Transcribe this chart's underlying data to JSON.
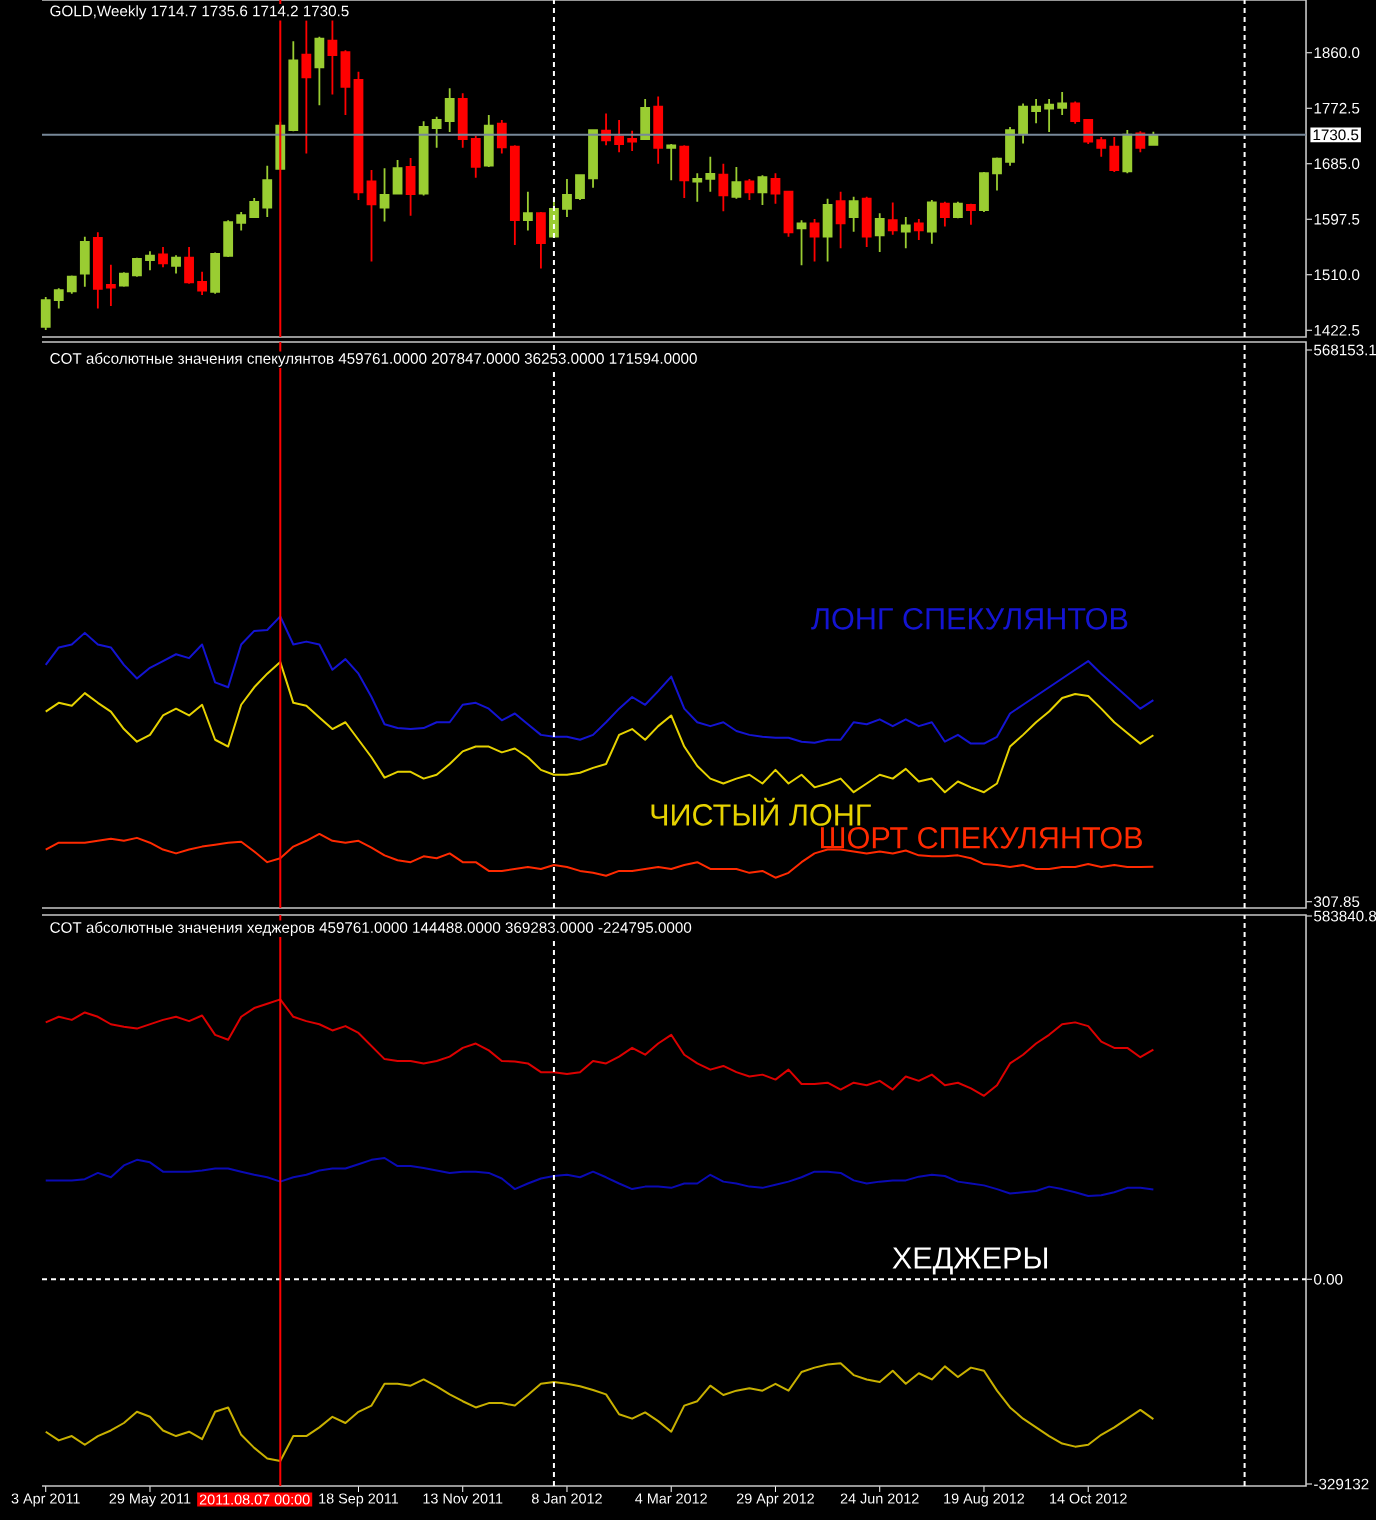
{
  "chart_data": [
    {
      "type": "candlestick",
      "title": "GOLD,Weekly 1714.7 1735.6 1714.2 1730.5",
      "x": [
        "2011-04-03",
        "2011-04-10",
        "2011-04-17",
        "2011-04-24",
        "2011-05-01",
        "2011-05-08",
        "2011-05-15",
        "2011-05-22",
        "2011-05-29",
        "2011-06-05",
        "2011-06-12",
        "2011-06-19",
        "2011-06-26",
        "2011-07-03",
        "2011-07-10",
        "2011-07-17",
        "2011-07-24",
        "2011-07-31",
        "2011-08-07",
        "2011-08-14",
        "2011-08-21",
        "2011-08-28",
        "2011-09-04",
        "2011-09-11",
        "2011-09-18",
        "2011-09-25",
        "2011-10-02",
        "2011-10-09",
        "2011-10-16",
        "2011-10-23",
        "2011-10-30",
        "2011-11-06",
        "2011-11-13",
        "2011-11-20",
        "2011-11-27",
        "2011-12-04",
        "2011-12-11",
        "2011-12-18",
        "2011-12-25",
        "2012-01-01",
        "2012-01-08",
        "2012-01-15",
        "2012-01-22",
        "2012-01-29",
        "2012-02-05",
        "2012-02-12",
        "2012-02-19",
        "2012-02-26",
        "2012-03-04",
        "2012-03-11",
        "2012-03-18",
        "2012-03-25",
        "2012-04-01",
        "2012-04-08",
        "2012-04-15",
        "2012-04-22",
        "2012-04-29",
        "2012-05-06",
        "2012-05-13",
        "2012-05-20",
        "2012-05-27",
        "2012-06-03",
        "2012-06-10",
        "2012-06-17",
        "2012-06-24",
        "2012-07-01",
        "2012-07-08",
        "2012-07-15",
        "2012-07-22",
        "2012-07-29",
        "2012-08-05",
        "2012-08-12",
        "2012-08-19",
        "2012-08-26",
        "2012-09-02",
        "2012-09-09",
        "2012-09-16",
        "2012-09-23",
        "2012-09-30",
        "2012-10-07",
        "2012-10-14",
        "2012-10-21",
        "2012-10-28",
        "2012-11-04",
        "2012-11-11",
        "2012-11-18"
      ],
      "ohlc": [
        [
          1428,
          1475,
          1423,
          1470
        ],
        [
          1470,
          1489,
          1457,
          1486
        ],
        [
          1484,
          1509,
          1480,
          1507
        ],
        [
          1512,
          1570,
          1491,
          1562
        ],
        [
          1568,
          1577,
          1457,
          1488
        ],
        [
          1494,
          1526,
          1461,
          1490
        ],
        [
          1493,
          1514,
          1491,
          1512
        ],
        [
          1509,
          1537,
          1507,
          1535
        ],
        [
          1533,
          1547,
          1517,
          1540
        ],
        [
          1542,
          1554,
          1522,
          1528
        ],
        [
          1524,
          1541,
          1512,
          1537
        ],
        [
          1537,
          1554,
          1496,
          1498
        ],
        [
          1499,
          1515,
          1478,
          1485
        ],
        [
          1483,
          1545,
          1480,
          1543
        ],
        [
          1540,
          1596,
          1538,
          1593
        ],
        [
          1592,
          1609,
          1580,
          1604
        ],
        [
          1601,
          1631,
          1600,
          1625
        ],
        [
          1616,
          1682,
          1601,
          1659
        ],
        [
          1677,
          1751,
          1675,
          1745
        ],
        [
          1738,
          1878,
          1736,
          1848
        ],
        [
          1857,
          1911,
          1701,
          1821
        ],
        [
          1837,
          1885,
          1777,
          1882
        ],
        [
          1879,
          1914,
          1794,
          1856
        ],
        [
          1861,
          1864,
          1762,
          1806
        ],
        [
          1817,
          1830,
          1628,
          1640
        ],
        [
          1657,
          1675,
          1531,
          1621
        ],
        [
          1616,
          1678,
          1594,
          1636
        ],
        [
          1638,
          1691,
          1638,
          1678
        ],
        [
          1680,
          1694,
          1603,
          1637
        ],
        [
          1638,
          1752,
          1635,
          1743
        ],
        [
          1741,
          1759,
          1710,
          1754
        ],
        [
          1752,
          1804,
          1735,
          1787
        ],
        [
          1787,
          1796,
          1710,
          1724
        ],
        [
          1724,
          1729,
          1663,
          1680
        ],
        [
          1682,
          1762,
          1680,
          1745
        ],
        [
          1748,
          1754,
          1701,
          1711
        ],
        [
          1712,
          1714,
          1557,
          1596
        ],
        [
          1596,
          1641,
          1580,
          1607
        ],
        [
          1607,
          1609,
          1520,
          1560
        ],
        [
          1570,
          1630,
          1568,
          1614
        ],
        [
          1614,
          1661,
          1601,
          1636
        ],
        [
          1631,
          1668,
          1628,
          1667
        ],
        [
          1662,
          1738,
          1647,
          1738
        ],
        [
          1737,
          1764,
          1714,
          1722
        ],
        [
          1728,
          1754,
          1703,
          1716
        ],
        [
          1724,
          1737,
          1705,
          1720
        ],
        [
          1724,
          1787,
          1724,
          1773
        ],
        [
          1775,
          1791,
          1685,
          1710
        ],
        [
          1710,
          1716,
          1659,
          1714
        ],
        [
          1712,
          1714,
          1631,
          1659
        ],
        [
          1657,
          1670,
          1625,
          1661
        ],
        [
          1661,
          1696,
          1641,
          1669
        ],
        [
          1668,
          1685,
          1610,
          1635
        ],
        [
          1633,
          1680,
          1630,
          1656
        ],
        [
          1657,
          1661,
          1628,
          1640
        ],
        [
          1640,
          1667,
          1620,
          1664
        ],
        [
          1661,
          1670,
          1622,
          1638
        ],
        [
          1641,
          1641,
          1570,
          1577
        ],
        [
          1583,
          1596,
          1525,
          1591
        ],
        [
          1591,
          1598,
          1531,
          1570
        ],
        [
          1570,
          1630,
          1531,
          1620
        ],
        [
          1626,
          1641,
          1552,
          1591
        ],
        [
          1601,
          1633,
          1578,
          1626
        ],
        [
          1630,
          1633,
          1554,
          1570
        ],
        [
          1572,
          1607,
          1546,
          1598
        ],
        [
          1596,
          1624,
          1573,
          1580
        ],
        [
          1578,
          1601,
          1552,
          1588
        ],
        [
          1591,
          1598,
          1565,
          1580
        ],
        [
          1578,
          1628,
          1559,
          1624
        ],
        [
          1622,
          1625,
          1586,
          1601
        ],
        [
          1601,
          1625,
          1599,
          1622
        ],
        [
          1620,
          1622,
          1589,
          1612
        ],
        [
          1612,
          1672,
          1609,
          1670
        ],
        [
          1670,
          1695,
          1643,
          1693
        ],
        [
          1688,
          1743,
          1682,
          1738
        ],
        [
          1733,
          1780,
          1717,
          1775
        ],
        [
          1768,
          1787,
          1749,
          1775
        ],
        [
          1772,
          1787,
          1735,
          1778
        ],
        [
          1773,
          1798,
          1762,
          1780
        ],
        [
          1780,
          1783,
          1748,
          1752
        ],
        [
          1754,
          1754,
          1716,
          1720
        ],
        [
          1722,
          1727,
          1696,
          1710
        ],
        [
          1712,
          1727,
          1672,
          1675
        ],
        [
          1673,
          1738,
          1670,
          1731
        ],
        [
          1733,
          1736,
          1703,
          1710
        ],
        [
          1714.7,
          1735.6,
          1714.2,
          1730.5
        ]
      ],
      "colors": [
        "#9acd32",
        "#9acd32",
        "#9acd32",
        "#9acd32",
        "#ff0000",
        "#ff0000",
        "#9acd32",
        "#9acd32",
        "#9acd32",
        "#ff0000",
        "#9acd32",
        "#ff0000",
        "#ff0000",
        "#9acd32",
        "#9acd32",
        "#9acd32",
        "#9acd32",
        "#9acd32",
        "#9acd32",
        "#9acd32",
        "#ff0000",
        "#9acd32",
        "#ff0000",
        "#ff0000",
        "#ff0000",
        "#ff0000",
        "#9acd32",
        "#9acd32",
        "#ff0000",
        "#9acd32",
        "#9acd32",
        "#9acd32",
        "#ff0000",
        "#ff0000",
        "#9acd32",
        "#ff0000",
        "#ff0000",
        "#9acd32",
        "#ff0000",
        "#9acd32",
        "#9acd32",
        "#9acd32",
        "#9acd32",
        "#ff0000",
        "#ff0000",
        "#ff0000",
        "#9acd32",
        "#ff0000",
        "#9acd32",
        "#ff0000",
        "#9acd32",
        "#9acd32",
        "#ff0000",
        "#9acd32",
        "#ff0000",
        "#9acd32",
        "#ff0000",
        "#ff0000",
        "#9acd32",
        "#ff0000",
        "#9acd32",
        "#ff0000",
        "#9acd32",
        "#ff0000",
        "#9acd32",
        "#ff0000",
        "#9acd32",
        "#ff0000",
        "#9acd32",
        "#ff0000",
        "#9acd32",
        "#ff0000",
        "#9acd32",
        "#9acd32",
        "#9acd32",
        "#9acd32",
        "#9acd32",
        "#9acd32",
        "#9acd32",
        "#ff0000",
        "#ff0000",
        "#ff0000",
        "#ff0000",
        "#9acd32",
        "#ff0000",
        "#9acd32"
      ],
      "xlim": [
        "2011-04-01",
        "2013-02-08"
      ],
      "ylim": [
        1412,
        1943
      ],
      "yticks": [
        {
          "value": 1422.5,
          "label": "1422.5"
        },
        {
          "value": 1510,
          "label": "1510.0"
        },
        1597.5,
        {
          "value": 1685,
          "label": "1685.0"
        },
        1772.5,
        {
          "value": 1860,
          "label": "1860.0"
        }
      ],
      "ref_lines": [
        {
          "axis": "x",
          "value": "2012-01-01",
          "color": "#ffffff",
          "line_style": "dashed"
        },
        {
          "axis": "x",
          "value": "2013-01-06",
          "color": "#ffffff",
          "line_style": "dashed"
        },
        {
          "axis": "y",
          "value": 1730.5,
          "label": "1730.5",
          "color": "#778899"
        },
        {
          "axis": "x",
          "value": "2011-08-07",
          "color": "#ff0000"
        }
      ],
      "tick_labels": "y"
    },
    {
      "type": "line",
      "title": "COT абсолютные значения спекулянтов 459761.0000 207847.0000 36253.0000 171594.0000",
      "x": [
        "2011-04-03",
        "2011-04-10",
        "2011-04-17",
        "2011-04-24",
        "2011-05-01",
        "2011-05-08",
        "2011-05-15",
        "2011-05-22",
        "2011-05-29",
        "2011-06-05",
        "2011-06-12",
        "2011-06-19",
        "2011-06-26",
        "2011-07-03",
        "2011-07-10",
        "2011-07-17",
        "2011-07-24",
        "2011-07-31",
        "2011-08-07",
        "2011-08-14",
        "2011-08-21",
        "2011-08-28",
        "2011-09-04",
        "2011-09-11",
        "2011-09-18",
        "2011-09-25",
        "2011-10-02",
        "2011-10-09",
        "2011-10-16",
        "2011-10-23",
        "2011-10-30",
        "2011-11-06",
        "2011-11-13",
        "2011-11-20",
        "2011-11-27",
        "2011-12-04",
        "2011-12-11",
        "2011-12-18",
        "2011-12-25",
        "2012-01-01",
        "2012-01-08",
        "2012-01-15",
        "2012-01-22",
        "2012-01-29",
        "2012-02-05",
        "2012-02-12",
        "2012-02-19",
        "2012-02-26",
        "2012-03-04",
        "2012-03-11",
        "2012-03-18",
        "2012-03-25",
        "2012-04-01",
        "2012-04-08",
        "2012-04-15",
        "2012-04-22",
        "2012-04-29",
        "2012-05-06",
        "2012-05-13",
        "2012-05-20",
        "2012-05-27",
        "2012-06-03",
        "2012-06-10",
        "2012-06-17",
        "2012-06-24",
        "2012-07-01",
        "2012-07-08",
        "2012-07-15",
        "2012-07-22",
        "2012-07-29",
        "2012-08-05",
        "2012-08-12",
        "2012-08-19",
        "2012-08-26",
        "2012-09-02",
        "2012-09-09",
        "2012-09-16",
        "2012-09-23",
        "2012-09-30",
        "2012-10-07",
        "2012-10-14",
        "2012-10-21",
        "2012-10-28",
        "2012-11-04",
        "2012-11-11",
        "2012-11-18"
      ],
      "series": [
        {
          "name": "ЛОНГ СПЕКУЛЯНТОВ",
          "color": "#1414d2",
          "values": [
            244000,
            262000,
            265000,
            277000,
            265000,
            262000,
            244000,
            230000,
            241000,
            248000,
            255000,
            251000,
            265000,
            226000,
            221000,
            265000,
            279000,
            280000,
            294000,
            265000,
            268000,
            265000,
            239000,
            250000,
            235000,
            211000,
            183000,
            179000,
            178000,
            179000,
            185000,
            185000,
            203000,
            205000,
            199000,
            187000,
            194000,
            183000,
            172000,
            170000,
            170000,
            167000,
            172000,
            185000,
            199000,
            211000,
            203000,
            217000,
            232000,
            199000,
            185000,
            181000,
            185000,
            176000,
            172000,
            170000,
            169000,
            169000,
            165000,
            164000,
            167000,
            167000,
            185000,
            183000,
            188000,
            181000,
            188000,
            181000,
            185000,
            165000,
            172000,
            163000,
            163000,
            170000,
            194000,
            203000,
            212000,
            221000,
            230000,
            239000,
            248000,
            235000,
            223000,
            211000,
            199000,
            207847
          ]
        },
        {
          "name": "ЧИСТЫЙ ЛОНГ",
          "color": "#e6d200",
          "values": [
            196000,
            205000,
            202000,
            215000,
            205000,
            196000,
            178000,
            165000,
            172000,
            192000,
            199000,
            192000,
            203000,
            167000,
            160000,
            203000,
            221000,
            235000,
            247000,
            205000,
            202000,
            190000,
            178000,
            185000,
            167000,
            149000,
            128000,
            134000,
            134000,
            127000,
            131000,
            142000,
            155000,
            160000,
            160000,
            154000,
            158000,
            149000,
            136000,
            131000,
            131000,
            133000,
            138000,
            142000,
            172000,
            178000,
            167000,
            181000,
            192000,
            160000,
            140000,
            127000,
            122000,
            127000,
            131000,
            122000,
            136000,
            122000,
            131000,
            118000,
            122000,
            127000,
            113000,
            122000,
            131000,
            127000,
            137000,
            124000,
            127000,
            113000,
            124000,
            118000,
            113000,
            122000,
            160000,
            172000,
            185000,
            196000,
            210000,
            214000,
            212000,
            199000,
            185000,
            174000,
            163000,
            171594
          ]
        },
        {
          "name": "ШОРТ СПЕКУЛЯНТОВ",
          "color": "#ff2a00",
          "values": [
            54000,
            61000,
            61000,
            61000,
            63000,
            65000,
            63000,
            66000,
            61000,
            54000,
            50000,
            54000,
            57000,
            59000,
            61000,
            62000,
            52000,
            41000,
            45000,
            57000,
            63000,
            70000,
            63000,
            61000,
            63000,
            56000,
            48000,
            43000,
            41000,
            47000,
            45000,
            50000,
            41000,
            41000,
            32000,
            32000,
            34000,
            36000,
            34000,
            38000,
            36000,
            32000,
            30000,
            27000,
            32000,
            32000,
            34000,
            36000,
            34000,
            38000,
            41000,
            34000,
            34000,
            34000,
            30000,
            32000,
            25000,
            30000,
            41000,
            50000,
            54000,
            54000,
            52000,
            50000,
            52000,
            50000,
            53000,
            48000,
            47000,
            47000,
            48000,
            45000,
            39000,
            38000,
            36000,
            38000,
            34000,
            34000,
            36000,
            36000,
            39000,
            36000,
            38000,
            36000,
            36000,
            36253
          ]
        }
      ],
      "xlim": [
        "2011-04-01",
        "2013-02-08"
      ],
      "ylim": [
        -6200,
        576400
      ],
      "yticks": [
        307.85,
        568153.1
      ],
      "ref_lines": [
        {
          "axis": "x",
          "value": "2012-01-01",
          "color": "#ffffff",
          "line_style": "dashed"
        },
        {
          "axis": "x",
          "value": "2013-01-06",
          "color": "#ffffff",
          "line_style": "dashed"
        },
        {
          "axis": "x",
          "value": "2011-08-07",
          "color": "#ff0000"
        }
      ],
      "tick_labels": "y"
    },
    {
      "type": "line",
      "title": "COT абсолютные значения хеджеров 459761.0000 144488.0000 369283.0000 -224795.0000",
      "x": [
        "2011-04-03",
        "2011-04-10",
        "2011-04-17",
        "2011-04-24",
        "2011-05-01",
        "2011-05-08",
        "2011-05-15",
        "2011-05-22",
        "2011-05-29",
        "2011-06-05",
        "2011-06-12",
        "2011-06-19",
        "2011-06-26",
        "2011-07-03",
        "2011-07-10",
        "2011-07-17",
        "2011-07-24",
        "2011-07-31",
        "2011-08-07",
        "2011-08-14",
        "2011-08-21",
        "2011-08-28",
        "2011-09-04",
        "2011-09-11",
        "2011-09-18",
        "2011-09-25",
        "2011-10-02",
        "2011-10-09",
        "2011-10-16",
        "2011-10-23",
        "2011-10-30",
        "2011-11-06",
        "2011-11-13",
        "2011-11-20",
        "2011-11-27",
        "2011-12-04",
        "2011-12-11",
        "2011-12-18",
        "2011-12-25",
        "2012-01-01",
        "2012-01-08",
        "2012-01-15",
        "2012-01-22",
        "2012-01-29",
        "2012-02-05",
        "2012-02-12",
        "2012-02-19",
        "2012-02-26",
        "2012-03-04",
        "2012-03-11",
        "2012-03-18",
        "2012-03-25",
        "2012-04-01",
        "2012-04-08",
        "2012-04-15",
        "2012-04-22",
        "2012-04-29",
        "2012-05-06",
        "2012-05-13",
        "2012-05-20",
        "2012-05-27",
        "2012-06-03",
        "2012-06-10",
        "2012-06-17",
        "2012-06-24",
        "2012-07-01",
        "2012-07-08",
        "2012-07-15",
        "2012-07-22",
        "2012-07-29",
        "2012-08-05",
        "2012-08-12",
        "2012-08-19",
        "2012-08-26",
        "2012-09-02",
        "2012-09-09",
        "2012-09-16",
        "2012-09-23",
        "2012-09-30",
        "2012-10-07",
        "2012-10-14",
        "2012-10-21",
        "2012-10-28",
        "2012-11-04",
        "2012-11-11",
        "2012-11-18"
      ],
      "series": [
        {
          "color": "#0a0ab4",
          "values": [
            159000,
            159000,
            159000,
            161000,
            171000,
            164000,
            183000,
            192000,
            188000,
            173000,
            173000,
            173000,
            175000,
            178000,
            178000,
            173000,
            168000,
            164000,
            157000,
            164000,
            168000,
            175000,
            178000,
            178000,
            185000,
            192000,
            195000,
            182000,
            182000,
            179000,
            175000,
            171000,
            173000,
            173000,
            171000,
            162000,
            145000,
            154000,
            162000,
            166000,
            168000,
            164000,
            173000,
            164000,
            154000,
            145000,
            149000,
            149000,
            147000,
            154000,
            154000,
            168000,
            157000,
            154000,
            149000,
            147000,
            152000,
            157000,
            164000,
            173000,
            173000,
            171000,
            159000,
            154000,
            157000,
            159000,
            159000,
            165000,
            168000,
            166000,
            157000,
            154000,
            151000,
            145000,
            138000,
            140000,
            142000,
            149000,
            145000,
            140000,
            134000,
            135000,
            140000,
            147000,
            147000,
            144488
          ]
        },
        {
          "color": "#c8b000",
          "values": [
            -245000,
            -259000,
            -252000,
            -266000,
            -252000,
            -243000,
            -231000,
            -213000,
            -221000,
            -243000,
            -252000,
            -245000,
            -257000,
            -213000,
            -206000,
            -250000,
            -271000,
            -288000,
            -292000,
            -252000,
            -252000,
            -238000,
            -221000,
            -231000,
            -213000,
            -203000,
            -168000,
            -168000,
            -171000,
            -161000,
            -172000,
            -185000,
            -196000,
            -206000,
            -199000,
            -199000,
            -203000,
            -186000,
            -168000,
            -165000,
            -168000,
            -172000,
            -178000,
            -185000,
            -217000,
            -224000,
            -214000,
            -228000,
            -245000,
            -203000,
            -196000,
            -171000,
            -186000,
            -179000,
            -175000,
            -179000,
            -168000,
            -179000,
            -149000,
            -142000,
            -137000,
            -135000,
            -154000,
            -161000,
            -165000,
            -147000,
            -168000,
            -151000,
            -161000,
            -140000,
            -157000,
            -142000,
            -147000,
            -179000,
            -206000,
            -224000,
            -238000,
            -252000,
            -264000,
            -269000,
            -266000,
            -250000,
            -238000,
            -224000,
            -210000,
            -224795
          ]
        },
        {
          "color": "#dc0000",
          "values": [
            413000,
            422000,
            417000,
            429000,
            422000,
            410000,
            406000,
            403000,
            410000,
            417000,
            422000,
            415000,
            424000,
            393000,
            385000,
            422000,
            436000,
            443000,
            450000,
            422000,
            415000,
            410000,
            400000,
            407000,
            396000,
            375000,
            354000,
            351000,
            351000,
            347000,
            351000,
            358000,
            372000,
            379000,
            368000,
            351000,
            350000,
            347000,
            333000,
            333000,
            330000,
            333000,
            351000,
            347000,
            358000,
            372000,
            361000,
            379000,
            393000,
            361000,
            347000,
            337000,
            343000,
            333000,
            326000,
            329000,
            321000,
            337000,
            314000,
            314000,
            316000,
            305000,
            316000,
            312000,
            319000,
            305000,
            326000,
            319000,
            329000,
            312000,
            316000,
            307000,
            295000,
            312000,
            347000,
            361000,
            379000,
            393000,
            410000,
            413000,
            407000,
            382000,
            372000,
            372000,
            357000,
            369283
          ]
        }
      ],
      "annotations": [
        "ХЕДЖЕРЫ"
      ],
      "xlim": [
        "2011-04-01",
        "2013-02-08"
      ],
      "xticks": [
        {
          "value": "2011-04-03",
          "label": "3 Apr 2011"
        },
        {
          "value": "2011-05-29",
          "label": "29 May 2011"
        },
        {
          "value": "2011-09-18",
          "label": "18 Sep 2011"
        },
        {
          "value": "2011-11-13",
          "label": "13 Nov 2011"
        },
        {
          "value": "2012-01-08",
          "label": "8 Jan 2012"
        },
        {
          "value": "2012-03-04",
          "label": "4 Mar 2012"
        },
        {
          "value": "2012-04-29",
          "label": "29 Apr 2012"
        },
        {
          "value": "2012-06-24",
          "label": "24 Jun 2012"
        },
        {
          "value": "2012-08-19",
          "label": "19 Aug 2012"
        },
        {
          "value": "2012-10-14",
          "label": "14 Oct 2012"
        }
      ],
      "ylim": [
        -332300,
        585600
      ],
      "yticks": [
        -329132,
        {
          "value": 0,
          "label": "0.00"
        },
        583840.8
      ],
      "ref_lines": [
        {
          "axis": "x",
          "value": "2012-01-01",
          "color": "#ffffff",
          "line_style": "dashed"
        },
        {
          "axis": "x",
          "value": "2013-01-06",
          "color": "#ffffff",
          "line_style": "dashed"
        },
        {
          "axis": "y",
          "value": 0,
          "color": "#ffffff",
          "line_style": "dashed"
        },
        {
          "axis": "x",
          "value": "2011-08-07",
          "label": "2011.08.07 00:00",
          "color": "#ff0000"
        }
      ]
    }
  ]
}
